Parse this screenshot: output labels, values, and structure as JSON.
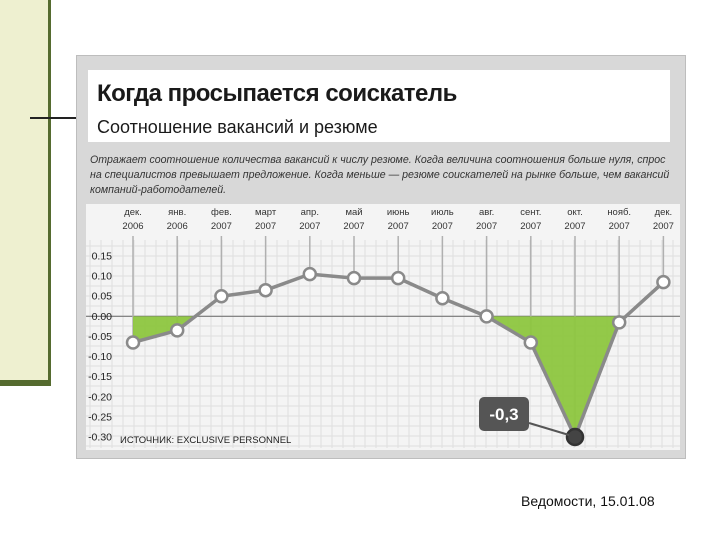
{
  "slide": {
    "caption": "Ведомости, 15.01.08"
  },
  "chart_data": {
    "type": "line",
    "title": "Когда просыпается соискатель",
    "subtitle": "Соотношение вакансий и резюме",
    "description": "Отражает соотношение количества вакансий к числу резюме. Когда величина соотношения больше нуля, спрос на специалистов превышает предложение. Когда меньше — резюме соискателей на рынке больше, чем вакансий компаний-работодателей.",
    "categories": [
      [
        "дек.",
        "2006"
      ],
      [
        "янв.",
        "2006"
      ],
      [
        "фев.",
        "2007"
      ],
      [
        "март",
        "2007"
      ],
      [
        "апр.",
        "2007"
      ],
      [
        "май",
        "2007"
      ],
      [
        "июнь",
        "2007"
      ],
      [
        "июль",
        "2007"
      ],
      [
        "авг.",
        "2007"
      ],
      [
        "сент.",
        "2007"
      ],
      [
        "окт.",
        "2007"
      ],
      [
        "нояб.",
        "2007"
      ],
      [
        "дек.",
        "2007"
      ]
    ],
    "values": [
      -0.065,
      -0.035,
      0.05,
      0.065,
      0.105,
      0.095,
      0.095,
      0.045,
      0.0,
      -0.065,
      -0.3,
      -0.015,
      0.085
    ],
    "y_ticks": [
      "0.15",
      "0.10",
      "0.05",
      "0.00",
      "-0.05",
      "-0.10",
      "-0.15",
      "-0.20",
      "-0.25",
      "-0.30"
    ],
    "ylim": [
      -0.3,
      0.15
    ],
    "annotation": {
      "label": "-0,3",
      "index": 10
    },
    "source": "ИСТОЧНИК: EXCLUSIVE PERSONNEL",
    "colors": {
      "line": "#8a8a8a",
      "fill_negative": "#8dc63f",
      "label_bg": "#555555"
    }
  }
}
